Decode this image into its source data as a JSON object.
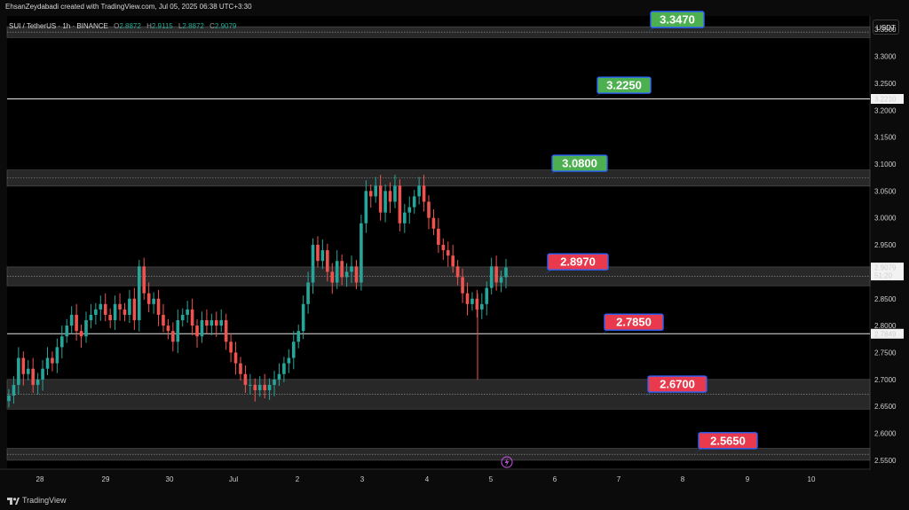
{
  "header": {
    "credit": "EhsanZeydabadi created with TradingView.com, Jul 05, 2025 06:38 UTC+3:30",
    "symbol": "SUI / TetherUS · 1h · BINANCE",
    "open_label": "O",
    "open": "2.8872",
    "high_label": "H",
    "high": "2.9115",
    "low_label": "L",
    "low": "2.8872",
    "close_label": "C",
    "close": "2.9079",
    "currency_button": "USDT"
  },
  "footer": {
    "brand": "TradingView"
  },
  "chart_data": {
    "type": "candlestick",
    "symbol": "SUI / TetherUS",
    "timeframe": "1h",
    "exchange": "BINANCE",
    "y_axis_ticks": [
      "3.3500",
      "3.3000",
      "3.2500",
      "3.2000",
      "3.1500",
      "3.1000",
      "3.0500",
      "3.0000",
      "2.9500",
      "2.9000",
      "2.8500",
      "2.8000",
      "2.7500",
      "2.7000",
      "2.6500",
      "2.6000",
      "2.5500"
    ],
    "ylim": [
      2.535,
      3.375
    ],
    "x_axis_ticks": [
      "28",
      "29",
      "30",
      "Jul",
      "2",
      "3",
      "4",
      "5",
      "6",
      "7",
      "8",
      "9",
      "10"
    ],
    "price_badges": [
      {
        "label": "3.2210",
        "value": 3.221
      },
      {
        "label": "2.9079",
        "value": 2.9079,
        "countdown": "51:20"
      },
      {
        "label": "2.7849",
        "value": 2.7849
      }
    ],
    "level_labels": [
      {
        "label": "3.3470",
        "value": 3.347,
        "type": "resistance",
        "color": "#4caf50"
      },
      {
        "label": "3.2250",
        "value": 3.225,
        "type": "resistance",
        "color": "#4caf50"
      },
      {
        "label": "3.0800",
        "value": 3.08,
        "type": "resistance",
        "color": "#4caf50"
      },
      {
        "label": "2.8970",
        "value": 2.897,
        "type": "support",
        "color": "#e8394d"
      },
      {
        "label": "2.7850",
        "value": 2.785,
        "type": "support",
        "color": "#e8394d"
      },
      {
        "label": "2.6700",
        "value": 2.67,
        "type": "support",
        "color": "#e8394d"
      },
      {
        "label": "2.5650",
        "value": 2.565,
        "type": "support",
        "color": "#e8394d"
      }
    ],
    "zones": [
      {
        "from": 3.335,
        "to": 3.355
      },
      {
        "from": 3.059,
        "to": 3.089
      },
      {
        "from": 2.874,
        "to": 2.909
      },
      {
        "from": 2.645,
        "to": 2.7
      },
      {
        "from": 2.55,
        "to": 2.572
      }
    ],
    "horizontal_lines": [
      3.221,
      2.785
    ],
    "close_series": [
      2.67,
      2.69,
      2.74,
      2.71,
      2.72,
      2.69,
      2.7,
      2.72,
      2.74,
      2.73,
      2.76,
      2.78,
      2.8,
      2.82,
      2.79,
      2.78,
      2.81,
      2.82,
      2.83,
      2.84,
      2.82,
      2.81,
      2.84,
      2.83,
      2.82,
      2.85,
      2.81,
      2.91,
      2.86,
      2.84,
      2.85,
      2.82,
      2.8,
      2.79,
      2.77,
      2.81,
      2.82,
      2.83,
      2.8,
      2.78,
      2.81,
      2.8,
      2.81,
      2.8,
      2.81,
      2.77,
      2.75,
      2.73,
      2.71,
      2.69,
      2.69,
      2.68,
      2.69,
      2.68,
      2.69,
      2.7,
      2.71,
      2.73,
      2.74,
      2.77,
      2.79,
      2.84,
      2.88,
      2.95,
      2.92,
      2.94,
      2.9,
      2.88,
      2.92,
      2.89,
      2.9,
      2.91,
      2.88,
      2.99,
      3.05,
      3.04,
      3.06,
      3.01,
      3.05,
      3.03,
      3.06,
      2.99,
      3.01,
      3.02,
      3.04,
      3.06,
      3.03,
      3.0,
      2.98,
      2.95,
      2.94,
      2.93,
      2.91,
      2.89,
      2.86,
      2.84,
      2.85,
      2.83,
      2.84,
      2.87,
      2.91,
      2.88,
      2.89,
      2.9079
    ]
  }
}
